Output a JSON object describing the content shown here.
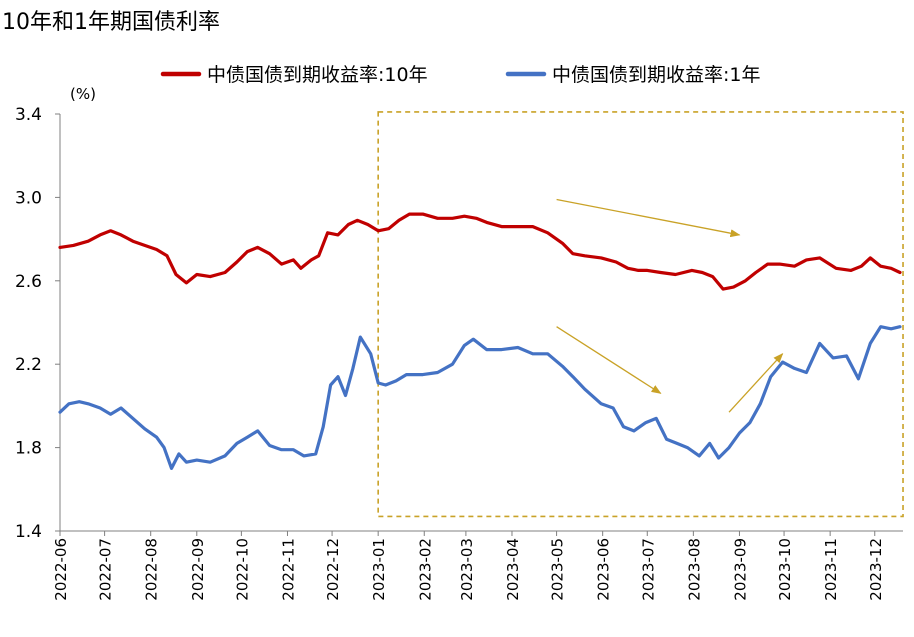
{
  "chart_data": {
    "type": "line",
    "title": "10年和1年期国债利率",
    "ylabel": "(%)",
    "ylim": [
      1.4,
      3.4
    ],
    "yticks": [
      "3.4",
      "3.0",
      "2.6",
      "2.2",
      "1.8",
      "1.4"
    ],
    "xticks": [
      "2022-06",
      "2022-07",
      "2022-08",
      "2022-09",
      "2022-10",
      "2022-11",
      "2022-12",
      "2023-01",
      "2023-02",
      "2023-03",
      "2023-04",
      "2023-05",
      "2023-06",
      "2023-07",
      "2023-08",
      "2023-09",
      "2023-10",
      "2023-11",
      "2023-12"
    ],
    "legend_position": "top",
    "grid": false,
    "series": [
      {
        "name": "中债国债到期收益率:10年",
        "color": "#C00000",
        "points": [
          [
            "2022-06-01",
            2.76
          ],
          [
            "2022-06-10",
            2.77
          ],
          [
            "2022-06-20",
            2.79
          ],
          [
            "2022-06-28",
            2.82
          ],
          [
            "2022-07-05",
            2.84
          ],
          [
            "2022-07-12",
            2.82
          ],
          [
            "2022-07-20",
            2.79
          ],
          [
            "2022-07-28",
            2.77
          ],
          [
            "2022-08-05",
            2.75
          ],
          [
            "2022-08-12",
            2.72
          ],
          [
            "2022-08-18",
            2.63
          ],
          [
            "2022-08-25",
            2.59
          ],
          [
            "2022-09-01",
            2.63
          ],
          [
            "2022-09-10",
            2.62
          ],
          [
            "2022-09-20",
            2.64
          ],
          [
            "2022-09-28",
            2.69
          ],
          [
            "2022-10-05",
            2.74
          ],
          [
            "2022-10-12",
            2.76
          ],
          [
            "2022-10-20",
            2.73
          ],
          [
            "2022-10-28",
            2.68
          ],
          [
            "2022-11-05",
            2.7
          ],
          [
            "2022-11-10",
            2.66
          ],
          [
            "2022-11-17",
            2.7
          ],
          [
            "2022-11-22",
            2.72
          ],
          [
            "2022-11-28",
            2.83
          ],
          [
            "2022-12-05",
            2.82
          ],
          [
            "2022-12-12",
            2.87
          ],
          [
            "2022-12-18",
            2.89
          ],
          [
            "2022-12-25",
            2.87
          ],
          [
            "2023-01-01",
            2.84
          ],
          [
            "2023-01-08",
            2.85
          ],
          [
            "2023-01-15",
            2.89
          ],
          [
            "2023-01-22",
            2.92
          ],
          [
            "2023-01-31",
            2.92
          ],
          [
            "2023-02-10",
            2.9
          ],
          [
            "2023-02-20",
            2.9
          ],
          [
            "2023-02-28",
            2.91
          ],
          [
            "2023-03-08",
            2.9
          ],
          [
            "2023-03-15",
            2.88
          ],
          [
            "2023-03-25",
            2.86
          ],
          [
            "2023-04-05",
            2.86
          ],
          [
            "2023-04-15",
            2.86
          ],
          [
            "2023-04-25",
            2.83
          ],
          [
            "2023-05-05",
            2.78
          ],
          [
            "2023-05-12",
            2.73
          ],
          [
            "2023-05-20",
            2.72
          ],
          [
            "2023-05-31",
            2.71
          ],
          [
            "2023-06-10",
            2.69
          ],
          [
            "2023-06-18",
            2.66
          ],
          [
            "2023-06-25",
            2.65
          ],
          [
            "2023-07-01",
            2.65
          ],
          [
            "2023-07-10",
            2.64
          ],
          [
            "2023-07-20",
            2.63
          ],
          [
            "2023-07-31",
            2.65
          ],
          [
            "2023-08-07",
            2.64
          ],
          [
            "2023-08-14",
            2.62
          ],
          [
            "2023-08-21",
            2.56
          ],
          [
            "2023-08-28",
            2.57
          ],
          [
            "2023-09-05",
            2.6
          ],
          [
            "2023-09-12",
            2.64
          ],
          [
            "2023-09-20",
            2.68
          ],
          [
            "2023-09-28",
            2.68
          ],
          [
            "2023-10-08",
            2.67
          ],
          [
            "2023-10-16",
            2.7
          ],
          [
            "2023-10-25",
            2.71
          ],
          [
            "2023-11-05",
            2.66
          ],
          [
            "2023-11-15",
            2.65
          ],
          [
            "2023-11-22",
            2.67
          ],
          [
            "2023-11-28",
            2.71
          ],
          [
            "2023-12-05",
            2.67
          ],
          [
            "2023-12-12",
            2.66
          ],
          [
            "2023-12-18",
            2.64
          ]
        ]
      },
      {
        "name": "中债国债到期收益率:1年",
        "color": "#4472C4",
        "points": [
          [
            "2022-06-01",
            1.97
          ],
          [
            "2022-06-07",
            2.01
          ],
          [
            "2022-06-14",
            2.02
          ],
          [
            "2022-06-20",
            2.01
          ],
          [
            "2022-06-28",
            1.99
          ],
          [
            "2022-07-05",
            1.96
          ],
          [
            "2022-07-12",
            1.99
          ],
          [
            "2022-07-20",
            1.94
          ],
          [
            "2022-07-28",
            1.89
          ],
          [
            "2022-08-05",
            1.85
          ],
          [
            "2022-08-10",
            1.8
          ],
          [
            "2022-08-15",
            1.7
          ],
          [
            "2022-08-20",
            1.77
          ],
          [
            "2022-08-25",
            1.73
          ],
          [
            "2022-09-01",
            1.74
          ],
          [
            "2022-09-10",
            1.73
          ],
          [
            "2022-09-20",
            1.76
          ],
          [
            "2022-09-28",
            1.82
          ],
          [
            "2022-10-05",
            1.85
          ],
          [
            "2022-10-12",
            1.88
          ],
          [
            "2022-10-20",
            1.81
          ],
          [
            "2022-10-28",
            1.79
          ],
          [
            "2022-11-05",
            1.79
          ],
          [
            "2022-11-12",
            1.76
          ],
          [
            "2022-11-20",
            1.77
          ],
          [
            "2022-11-25",
            1.9
          ],
          [
            "2022-11-30",
            2.1
          ],
          [
            "2022-12-05",
            2.14
          ],
          [
            "2022-12-10",
            2.05
          ],
          [
            "2022-12-15",
            2.18
          ],
          [
            "2022-12-20",
            2.33
          ],
          [
            "2022-12-27",
            2.25
          ],
          [
            "2023-01-01",
            2.11
          ],
          [
            "2023-01-06",
            2.1
          ],
          [
            "2023-01-13",
            2.12
          ],
          [
            "2023-01-20",
            2.15
          ],
          [
            "2023-01-31",
            2.15
          ],
          [
            "2023-02-10",
            2.16
          ],
          [
            "2023-02-20",
            2.2
          ],
          [
            "2023-02-28",
            2.29
          ],
          [
            "2023-03-06",
            2.32
          ],
          [
            "2023-03-15",
            2.27
          ],
          [
            "2023-03-25",
            2.27
          ],
          [
            "2023-04-05",
            2.28
          ],
          [
            "2023-04-15",
            2.25
          ],
          [
            "2023-04-25",
            2.25
          ],
          [
            "2023-05-05",
            2.19
          ],
          [
            "2023-05-12",
            2.14
          ],
          [
            "2023-05-20",
            2.08
          ],
          [
            "2023-05-31",
            2.01
          ],
          [
            "2023-06-08",
            1.99
          ],
          [
            "2023-06-15",
            1.9
          ],
          [
            "2023-06-22",
            1.88
          ],
          [
            "2023-06-30",
            1.92
          ],
          [
            "2023-07-07",
            1.94
          ],
          [
            "2023-07-14",
            1.84
          ],
          [
            "2023-07-21",
            1.82
          ],
          [
            "2023-07-28",
            1.8
          ],
          [
            "2023-08-05",
            1.76
          ],
          [
            "2023-08-12",
            1.82
          ],
          [
            "2023-08-18",
            1.75
          ],
          [
            "2023-08-25",
            1.8
          ],
          [
            "2023-09-01",
            1.87
          ],
          [
            "2023-09-08",
            1.92
          ],
          [
            "2023-09-15",
            2.01
          ],
          [
            "2023-09-22",
            2.14
          ],
          [
            "2023-09-30",
            2.21
          ],
          [
            "2023-10-08",
            2.18
          ],
          [
            "2023-10-16",
            2.16
          ],
          [
            "2023-10-25",
            2.3
          ],
          [
            "2023-11-03",
            2.23
          ],
          [
            "2023-11-12",
            2.24
          ],
          [
            "2023-11-20",
            2.13
          ],
          [
            "2023-11-28",
            2.3
          ],
          [
            "2023-12-05",
            2.38
          ],
          [
            "2023-12-12",
            2.37
          ],
          [
            "2023-12-18",
            2.38
          ]
        ]
      }
    ],
    "annotations": {
      "box": {
        "x_from": "2023-01-01",
        "x_to": "2023-12-18",
        "y_from": 1.47,
        "y_to": 3.41,
        "color": "#C9A227"
      },
      "arrows": [
        {
          "from": [
            "2023-05-01",
            2.99
          ],
          "to": [
            "2023-09-01",
            2.82
          ],
          "color": "#C9A227"
        },
        {
          "from": [
            "2023-05-01",
            2.38
          ],
          "to": [
            "2023-07-10",
            2.06
          ],
          "color": "#C9A227"
        },
        {
          "from": [
            "2023-08-25",
            1.97
          ],
          "to": [
            "2023-09-30",
            2.25
          ],
          "color": "#C9A227"
        }
      ]
    }
  }
}
